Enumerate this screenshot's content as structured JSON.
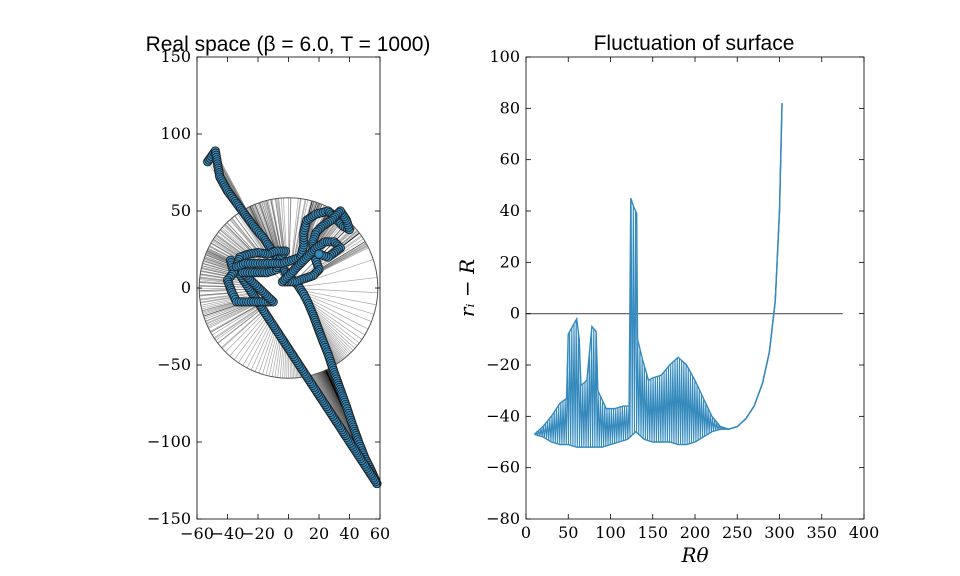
{
  "chart_data": [
    {
      "type": "scatter",
      "title": "Real space (β = 6.0, T = 1000)",
      "xlabel": "",
      "ylabel": "",
      "xlim": [
        -60,
        60
      ],
      "ylim": [
        -150,
        150
      ],
      "xticks": [
        -60,
        -40,
        -20,
        0,
        20,
        40,
        60
      ],
      "yticks": [
        -150,
        -100,
        -50,
        0,
        50,
        100,
        150
      ],
      "xtick_labels": [
        "−60",
        "−40",
        "−20",
        "0",
        "20",
        "40",
        "60"
      ],
      "ytick_labels": [
        "−150",
        "−100",
        "−50",
        "0",
        "50",
        "100",
        "150"
      ],
      "grid": false,
      "reference_circle": {
        "center": [
          0,
          0
        ],
        "radius": 58.6
      },
      "marker_color": "#348abd",
      "ray_color": "#000000",
      "points": [
        [
          -53,
          82
        ],
        [
          -48,
          89
        ],
        [
          -45,
          72
        ],
        [
          -40,
          63
        ],
        [
          -34,
          55
        ],
        [
          -28,
          47
        ],
        [
          -22,
          39
        ],
        [
          -16,
          32
        ],
        [
          -12,
          26
        ],
        [
          -8,
          20
        ],
        [
          -4,
          14
        ],
        [
          -2,
          10
        ],
        [
          2,
          6
        ],
        [
          6,
          2
        ],
        [
          10,
          -4
        ],
        [
          13,
          -10
        ],
        [
          16,
          -17
        ],
        [
          19,
          -25
        ],
        [
          22,
          -33
        ],
        [
          26,
          -43
        ],
        [
          30,
          -55
        ],
        [
          34,
          -66
        ],
        [
          38,
          -77
        ],
        [
          42,
          -89
        ],
        [
          46,
          -100
        ],
        [
          50,
          -110
        ],
        [
          54,
          -118
        ],
        [
          58,
          -127
        ],
        [
          -38,
          18
        ],
        [
          -36,
          10
        ],
        [
          -40,
          5
        ],
        [
          -37,
          -3
        ],
        [
          -34,
          -9
        ],
        [
          -26,
          -9
        ],
        [
          -18,
          -9
        ],
        [
          -10,
          -9
        ],
        [
          -30,
          10
        ],
        [
          -22,
          10
        ],
        [
          -14,
          10
        ],
        [
          -8,
          12
        ],
        [
          -5,
          20
        ],
        [
          -2,
          24
        ],
        [
          -8,
          24
        ],
        [
          -14,
          22
        ],
        [
          -20,
          23
        ],
        [
          -26,
          22
        ],
        [
          -32,
          20
        ],
        [
          -34,
          14
        ],
        [
          -28,
          16
        ],
        [
          -20,
          16
        ],
        [
          -12,
          16
        ],
        [
          -4,
          16
        ],
        [
          2,
          18
        ],
        [
          8,
          20
        ],
        [
          10,
          28
        ],
        [
          10,
          36
        ],
        [
          12,
          44
        ],
        [
          18,
          48
        ],
        [
          26,
          50
        ],
        [
          30,
          46
        ],
        [
          36,
          40
        ],
        [
          40,
          38
        ],
        [
          38,
          44
        ],
        [
          34,
          50
        ],
        [
          28,
          44
        ],
        [
          22,
          40
        ],
        [
          18,
          36
        ],
        [
          16,
          30
        ],
        [
          16,
          24
        ],
        [
          18,
          18
        ],
        [
          20,
          12
        ],
        [
          16,
          8
        ],
        [
          10,
          6
        ],
        [
          4,
          4
        ],
        [
          -4,
          4
        ],
        [
          18,
          26
        ],
        [
          24,
          30
        ],
        [
          30,
          30
        ],
        [
          34,
          26
        ],
        [
          26,
          20
        ],
        [
          20,
          22
        ]
      ]
    },
    {
      "type": "line",
      "title": "Fluctuation of surface",
      "xlabel": "Rθ",
      "ylabel": "rᵢ − R",
      "xlim": [
        0,
        400
      ],
      "ylim": [
        -80,
        100
      ],
      "xticks": [
        0,
        50,
        100,
        150,
        200,
        250,
        300,
        350,
        400
      ],
      "yticks": [
        -80,
        -60,
        -40,
        -20,
        0,
        20,
        40,
        60,
        80,
        100
      ],
      "xtick_labels": [
        "0",
        "50",
        "100",
        "150",
        "200",
        "250",
        "300",
        "350",
        "400"
      ],
      "ytick_labels": [
        "−80",
        "−60",
        "−40",
        "−20",
        "0",
        "20",
        "40",
        "60",
        "80",
        "100"
      ],
      "grid": false,
      "line_color": "#348abd",
      "reference_line": {
        "y": 0,
        "x_range": [
          0,
          375
        ],
        "color": "#555555"
      },
      "envelope_upper": [
        [
          10,
          -47
        ],
        [
          20,
          -44
        ],
        [
          30,
          -40
        ],
        [
          40,
          -35
        ],
        [
          48,
          -33
        ],
        [
          50,
          -8
        ],
        [
          55,
          -5
        ],
        [
          60,
          -2
        ],
        [
          63,
          -10
        ],
        [
          65,
          -28
        ],
        [
          72,
          -26
        ],
        [
          78,
          -5
        ],
        [
          83,
          -7
        ],
        [
          85,
          -30
        ],
        [
          95,
          -37
        ],
        [
          105,
          -37
        ],
        [
          115,
          -36
        ],
        [
          122,
          -36
        ],
        [
          124,
          45
        ],
        [
          127,
          42
        ],
        [
          131,
          39
        ],
        [
          132,
          -10
        ],
        [
          138,
          -18
        ],
        [
          145,
          -26
        ],
        [
          150,
          -25
        ],
        [
          160,
          -24
        ],
        [
          170,
          -20
        ],
        [
          180,
          -17
        ],
        [
          190,
          -20
        ],
        [
          200,
          -26
        ],
        [
          210,
          -33
        ],
        [
          220,
          -40
        ],
        [
          230,
          -44
        ],
        [
          240,
          -45
        ],
        [
          250,
          -44
        ],
        [
          260,
          -41
        ],
        [
          270,
          -36
        ],
        [
          280,
          -27
        ],
        [
          288,
          -15
        ],
        [
          295,
          5
        ],
        [
          300,
          40
        ],
        [
          303,
          82
        ]
      ],
      "envelope_lower": [
        [
          10,
          -47
        ],
        [
          20,
          -48
        ],
        [
          30,
          -50
        ],
        [
          40,
          -51
        ],
        [
          50,
          -51
        ],
        [
          60,
          -52
        ],
        [
          70,
          -52
        ],
        [
          80,
          -52
        ],
        [
          90,
          -52
        ],
        [
          100,
          -51
        ],
        [
          110,
          -50
        ],
        [
          120,
          -49
        ],
        [
          130,
          -46
        ],
        [
          140,
          -49
        ],
        [
          150,
          -50
        ],
        [
          160,
          -50
        ],
        [
          170,
          -50
        ],
        [
          180,
          -51
        ],
        [
          190,
          -51
        ],
        [
          200,
          -50
        ],
        [
          210,
          -48
        ],
        [
          220,
          -46
        ],
        [
          230,
          -45
        ],
        [
          240,
          -45
        ],
        [
          250,
          -44
        ],
        [
          260,
          -41
        ],
        [
          270,
          -36
        ],
        [
          280,
          -27
        ],
        [
          288,
          -15
        ],
        [
          295,
          5
        ],
        [
          300,
          40
        ],
        [
          303,
          82
        ]
      ]
    }
  ]
}
